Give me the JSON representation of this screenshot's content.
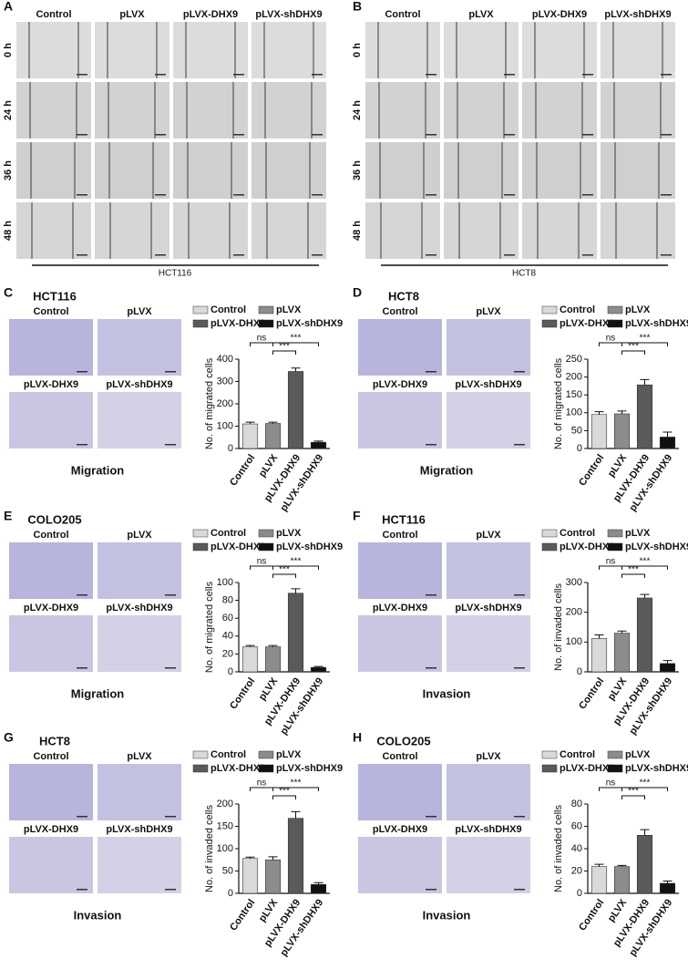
{
  "wound_healing": [
    {
      "panel": "A",
      "conditions": [
        "Control",
        "pLVX",
        "pLVX-DHX9",
        "pLVX-shDHX9"
      ],
      "times": [
        "0 h",
        "24 h",
        "36 h",
        "48 h"
      ],
      "cell_line": "HCT116"
    },
    {
      "panel": "B",
      "conditions": [
        "Control",
        "pLVX",
        "pLVX-DHX9",
        "pLVX-shDHX9"
      ],
      "times": [
        "0 h",
        "24 h",
        "36 h",
        "48 h"
      ],
      "cell_line": "HCT8"
    }
  ],
  "chart_data": [
    {
      "type": "bar",
      "panel": "C",
      "title": "HCT116",
      "image_labels": [
        "Control",
        "pLVX",
        "pLVX-DHX9",
        "pLVX-shDHX9"
      ],
      "assay": "Migration",
      "categories": [
        "Control",
        "pLVX",
        "pLVX-DHX9",
        "pLVX-shDHX9"
      ],
      "colors": [
        "#d9d9d9",
        "#8c8c8c",
        "#5a5a5a",
        "#111111"
      ],
      "values": [
        110,
        112,
        345,
        28
      ],
      "errors": [
        8,
        6,
        15,
        5
      ],
      "ylabel": "No. of migrated cells",
      "ylim": [
        0,
        400
      ],
      "yticks": [
        0,
        100,
        200,
        300,
        400
      ],
      "annotations": [
        "ns",
        "***",
        "***"
      ]
    },
    {
      "type": "bar",
      "panel": "D",
      "title": "HCT8",
      "image_labels": [
        "Control",
        "pLVX",
        "pLVX-DHX9",
        "pLVX-shDHX9"
      ],
      "assay": "Migration",
      "categories": [
        "Control",
        "pLVX",
        "pLVX-DHX9",
        "pLVX-shDHX9"
      ],
      "colors": [
        "#d9d9d9",
        "#8c8c8c",
        "#5a5a5a",
        "#111111"
      ],
      "values": [
        95,
        97,
        178,
        32
      ],
      "errors": [
        8,
        8,
        15,
        14
      ],
      "ylabel": "No. of migrated cells",
      "ylim": [
        0,
        250
      ],
      "yticks": [
        0,
        50,
        100,
        150,
        200,
        250
      ],
      "annotations": [
        "ns",
        "***",
        "***"
      ]
    },
    {
      "type": "bar",
      "panel": "E",
      "title": "COLO205",
      "image_labels": [
        "Control",
        "pLVX",
        "pLVX-DHX9",
        "pLVX-shDHX9"
      ],
      "assay": "Migration",
      "categories": [
        "Control",
        "pLVX",
        "pLVX-DHX9",
        "pLVX-shDHX9"
      ],
      "colors": [
        "#d9d9d9",
        "#8c8c8c",
        "#5a5a5a",
        "#111111"
      ],
      "values": [
        28,
        28,
        88,
        5
      ],
      "errors": [
        1.5,
        1.5,
        5,
        1
      ],
      "ylabel": "No. of migrated cells",
      "ylim": [
        0,
        100
      ],
      "yticks": [
        0,
        20,
        40,
        60,
        80,
        100
      ],
      "annotations": [
        "ns",
        "***",
        "***"
      ]
    },
    {
      "type": "bar",
      "panel": "F",
      "title": "HCT116",
      "image_labels": [
        "Control",
        "pLVX",
        "pLVX-DHX9",
        "pLVX-shDHX9"
      ],
      "assay": "Invasion",
      "categories": [
        "Control",
        "pLVX",
        "pLVX-DHX9",
        "pLVX-shDHX9"
      ],
      "colors": [
        "#d9d9d9",
        "#8c8c8c",
        "#5a5a5a",
        "#111111"
      ],
      "values": [
        112,
        130,
        248,
        28
      ],
      "errors": [
        12,
        7,
        12,
        10
      ],
      "ylabel": "No. of invaded cells",
      "ylim": [
        0,
        300
      ],
      "yticks": [
        0,
        100,
        200,
        300
      ],
      "annotations": [
        "ns",
        "***",
        "***"
      ]
    },
    {
      "type": "bar",
      "panel": "G",
      "title": "HCT8",
      "image_labels": [
        "Control",
        "pLVX",
        "pLVX-DHX9",
        "pLVX-shDHX9"
      ],
      "assay": "Invasion",
      "categories": [
        "Control",
        "pLVX",
        "pLVX-DHX9",
        "pLVX-shDHX9"
      ],
      "colors": [
        "#d9d9d9",
        "#8c8c8c",
        "#5a5a5a",
        "#111111"
      ],
      "values": [
        78,
        75,
        168,
        20
      ],
      "errors": [
        3,
        7,
        15,
        4
      ],
      "ylabel": "No. of invaded cells",
      "ylim": [
        0,
        200
      ],
      "yticks": [
        0,
        50,
        100,
        150,
        200
      ],
      "annotations": [
        "ns",
        "***",
        "***"
      ]
    },
    {
      "type": "bar",
      "panel": "H",
      "title": "COLO205",
      "image_labels": [
        "Control",
        "pLVX",
        "pLVX-DHX9",
        "pLVX-shDHX9"
      ],
      "assay": "Invasion",
      "categories": [
        "Control",
        "pLVX",
        "pLVX-DHX9",
        "pLVX-shDHX9"
      ],
      "colors": [
        "#d9d9d9",
        "#8c8c8c",
        "#5a5a5a",
        "#111111"
      ],
      "values": [
        24,
        24,
        52,
        9
      ],
      "errors": [
        2,
        1,
        5,
        2
      ],
      "ylabel": "No. of invaded cells",
      "ylim": [
        0,
        80
      ],
      "yticks": [
        0,
        20,
        40,
        60,
        80
      ],
      "annotations": [
        "ns",
        "***",
        "***"
      ]
    }
  ]
}
